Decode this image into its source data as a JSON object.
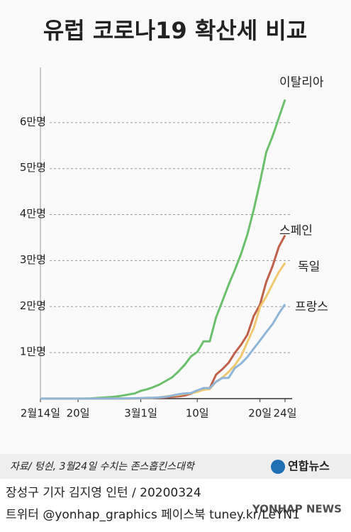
{
  "chart_data": {
    "type": "line",
    "title": "유럽 코로나19 확산세 비교",
    "categories": [
      "2월14일",
      null,
      null,
      null,
      null,
      null,
      "20일",
      null,
      null,
      null,
      null,
      null,
      null,
      null,
      null,
      null,
      "3월1일",
      null,
      null,
      null,
      null,
      null,
      null,
      null,
      null,
      "10일",
      null,
      null,
      null,
      null,
      null,
      null,
      null,
      null,
      null,
      "20일",
      null,
      null,
      null,
      "24일"
    ],
    "series": [
      {
        "name": "이탈리아",
        "color": "#6cbf6c",
        "values": [
          3,
          3,
          3,
          3,
          3,
          3,
          3,
          20,
          62,
          155,
          229,
          322,
          453,
          655,
          888,
          1128,
          1694,
          2036,
          2502,
          3089,
          3858,
          4636,
          5883,
          7375,
          9172,
          10149,
          12462,
          12462,
          17660,
          21157,
          24747,
          27980,
          31506,
          35713,
          41035,
          47021,
          53578,
          57000,
          61000,
          65000
        ]
      },
      {
        "name": "스페인",
        "color": "#c0604a",
        "values": [
          2,
          2,
          2,
          2,
          2,
          2,
          2,
          2,
          2,
          2,
          2,
          6,
          13,
          15,
          32,
          45,
          84,
          120,
          165,
          222,
          259,
          400,
          500,
          673,
          1073,
          1695,
          2277,
          2277,
          5232,
          6391,
          7798,
          9942,
          11748,
          13910,
          17963,
          20410,
          25374,
          28768,
          33000,
          35500
        ]
      },
      {
        "name": "독일",
        "color": "#f0c870",
        "values": [
          16,
          16,
          16,
          16,
          16,
          16,
          16,
          16,
          16,
          16,
          16,
          17,
          27,
          46,
          48,
          79,
          130,
          159,
          196,
          262,
          482,
          670,
          799,
          1040,
          1176,
          1457,
          1908,
          2078,
          3675,
          4585,
          5795,
          7272,
          9257,
          12327,
          15320,
          19848,
          22213,
          24873,
          27500,
          29500
        ]
      },
      {
        "name": "프랑스",
        "color": "#8fb5d8",
        "values": [
          11,
          11,
          12,
          12,
          12,
          12,
          12,
          12,
          12,
          12,
          12,
          14,
          18,
          38,
          57,
          100,
          130,
          191,
          204,
          288,
          380,
          656,
          957,
          1134,
          1217,
          1792,
          2289,
          2289,
          3672,
          4480,
          4513,
          6650,
          7652,
          9043,
          10871,
          12612,
          14459,
          16176,
          18500,
          20500
        ]
      }
    ],
    "ylim": [
      0,
      72000
    ],
    "yticks": [
      {
        "value": 10000,
        "label": "1만명"
      },
      {
        "value": 20000,
        "label": "2만명"
      },
      {
        "value": 30000,
        "label": "3만명"
      },
      {
        "value": 40000,
        "label": "4만명"
      },
      {
        "value": 50000,
        "label": "5만명"
      },
      {
        "value": 60000,
        "label": "6만명"
      }
    ],
    "grid": true
  },
  "source": "자료/ 텅쉰, 3월24일 수치는 존스홉킨스대학",
  "logo": "연합뉴스",
  "credit": "장성구 기자  김지영 인턴 / 20200324",
  "sns": "트위터 @yonhap_graphics  페이스북 tuney.kr/LeYN1",
  "watermark": "YONHAP NEWS"
}
